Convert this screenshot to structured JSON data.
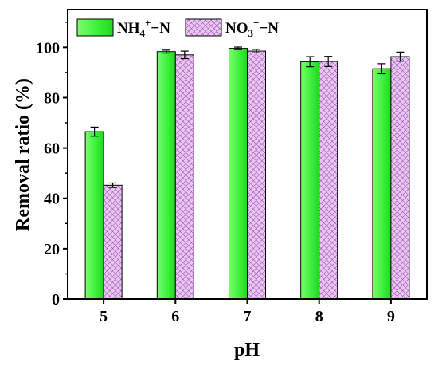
{
  "chart_data": {
    "type": "bar",
    "categories": [
      "5",
      "6",
      "7",
      "8",
      "9"
    ],
    "series": [
      {
        "name": "NH4+−N",
        "legend_main": "NH",
        "legend_sub": "4",
        "legend_sup": "+",
        "legend_tail": "−N",
        "color": "#33ee33",
        "values": [
          66.5,
          98.3,
          99.6,
          94.3,
          91.5
        ],
        "errors": [
          1.8,
          0.6,
          0.5,
          2.0,
          2.0
        ]
      },
      {
        "name": "NO3−−N",
        "legend_main": "NO",
        "legend_sub": "3",
        "legend_sup": "−",
        "legend_tail": "−N",
        "color": "#d9a7e6",
        "values": [
          45.2,
          97.0,
          98.5,
          94.4,
          96.3
        ],
        "errors": [
          0.9,
          1.5,
          0.7,
          2.0,
          1.8
        ]
      }
    ],
    "xlabel": "pH",
    "ylabel": "Removal ratio (%)",
    "ylim": [
      0,
      115
    ],
    "yticks": [
      "0",
      "20",
      "40",
      "60",
      "80",
      "100"
    ],
    "grid": false,
    "legend_position": "top-left"
  }
}
